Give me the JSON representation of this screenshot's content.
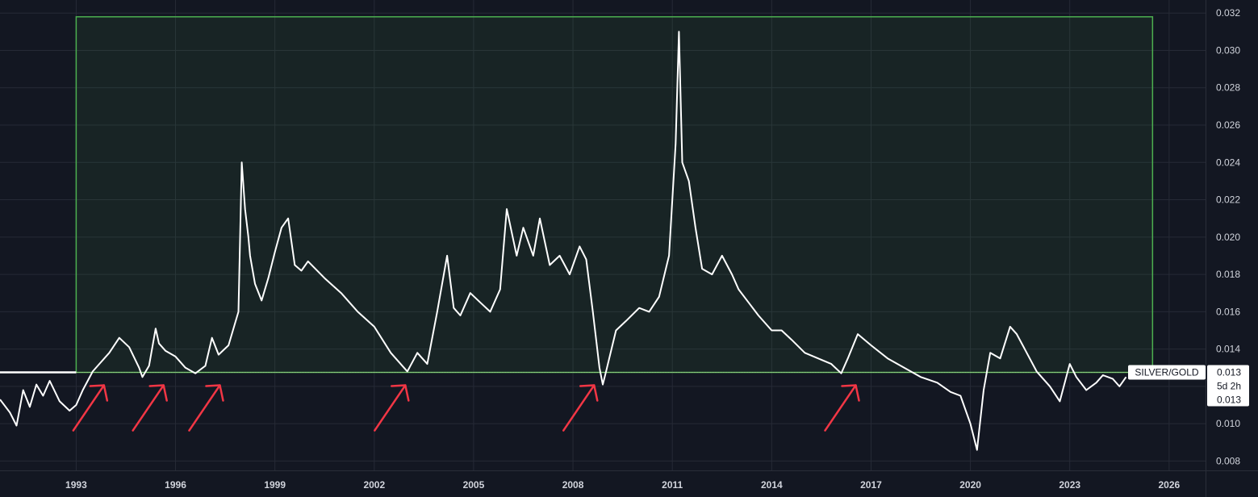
{
  "chart_data": {
    "type": "line",
    "symbol": "SILVER/GOLD",
    "last_price": "0.013",
    "countdown": "5d 2h",
    "price_line_label": "0.013",
    "support_level": 0.01275,
    "zone": {
      "x_start": 1993.0,
      "x_end": 2025.5,
      "y_low": 0.01275,
      "y_high": 0.0318
    },
    "zone_color": "#4caf50",
    "line_color": "#ffffff",
    "arrow_color": "#f23645",
    "background_color": "#131722",
    "x_ticks": [
      "1993",
      "1996",
      "1999",
      "2002",
      "2005",
      "2008",
      "2011",
      "2014",
      "2017",
      "2020",
      "2023",
      "2026"
    ],
    "x_tick_values": [
      1993,
      1996,
      1999,
      2002,
      2005,
      2008,
      2011,
      2014,
      2017,
      2020,
      2023,
      2026
    ],
    "y_ticks": [
      "0.008",
      "0.010",
      "0.012",
      "0.014",
      "0.016",
      "0.018",
      "0.020",
      "0.022",
      "0.024",
      "0.026",
      "0.028",
      "0.030",
      "0.032"
    ],
    "y_tick_values": [
      0.008,
      0.01,
      0.012,
      0.014,
      0.016,
      0.018,
      0.02,
      0.022,
      0.024,
      0.026,
      0.028,
      0.03,
      0.032
    ],
    "xlim": [
      1990.7,
      2027.1
    ],
    "ylim": [
      0.0075,
      0.0327
    ],
    "grid": true,
    "arrows": [
      1993.4,
      1995.2,
      1996.9,
      2002.5,
      2008.2,
      2016.1
    ],
    "series": [
      {
        "x": [
          1990.7,
          1991.0,
          1991.2,
          1991.4,
          1991.6,
          1991.8,
          1992.0,
          1992.2,
          1992.5,
          1992.8,
          1993.0,
          1993.2,
          1993.5,
          1993.7,
          1994.0,
          1994.3,
          1994.6,
          1994.9,
          1995.0,
          1995.2,
          1995.4,
          1995.5,
          1995.7,
          1996.0,
          1996.3,
          1996.6,
          1996.9,
          1997.1,
          1997.3,
          1997.6,
          1997.9,
          1998.0,
          1998.1,
          1998.2,
          1998.25,
          1998.4,
          1998.6,
          1998.8,
          1999.0,
          1999.2,
          1999.4,
          1999.6,
          1999.8,
          2000.0,
          2000.5,
          2001.0,
          2001.5,
          2002.0,
          2002.5,
          2002.9,
          2003.0,
          2003.3,
          2003.6,
          2003.9,
          2004.2,
          2004.4,
          2004.6,
          2004.9,
          2005.2,
          2005.5,
          2005.8,
          2006.0,
          2006.3,
          2006.5,
          2006.8,
          2007.0,
          2007.3,
          2007.6,
          2007.9,
          2008.2,
          2008.4,
          2008.6,
          2008.8,
          2008.9,
          2009.0,
          2009.3,
          2009.6,
          2010.0,
          2010.3,
          2010.6,
          2010.9,
          2011.1,
          2011.2,
          2011.3,
          2011.5,
          2011.7,
          2011.9,
          2012.2,
          2012.5,
          2012.8,
          2013.0,
          2013.3,
          2013.6,
          2014.0,
          2014.3,
          2014.6,
          2015.0,
          2015.4,
          2015.8,
          2016.1,
          2016.3,
          2016.6,
          2017.0,
          2017.5,
          2018.0,
          2018.5,
          2019.0,
          2019.4,
          2019.7,
          2020.0,
          2020.2,
          2020.4,
          2020.6,
          2020.9,
          2021.2,
          2021.4,
          2021.7,
          2022.0,
          2022.4,
          2022.7,
          2023.0,
          2023.2,
          2023.5,
          2023.8,
          2024.0,
          2024.3,
          2024.5,
          2024.7
        ],
        "y": [
          0.0113,
          0.0106,
          0.0099,
          0.0118,
          0.0109,
          0.0121,
          0.0115,
          0.0123,
          0.0112,
          0.0107,
          0.011,
          0.0118,
          0.0128,
          0.0132,
          0.0138,
          0.0146,
          0.0141,
          0.013,
          0.0125,
          0.0131,
          0.0151,
          0.0143,
          0.0139,
          0.0136,
          0.013,
          0.0127,
          0.0131,
          0.0146,
          0.0137,
          0.0142,
          0.016,
          0.024,
          0.0215,
          0.02,
          0.019,
          0.0175,
          0.0166,
          0.0178,
          0.0192,
          0.0205,
          0.021,
          0.0185,
          0.0182,
          0.0187,
          0.0178,
          0.017,
          0.016,
          0.0152,
          0.0138,
          0.013,
          0.0128,
          0.0138,
          0.0132,
          0.016,
          0.019,
          0.0162,
          0.0158,
          0.017,
          0.0165,
          0.016,
          0.0172,
          0.0215,
          0.019,
          0.0205,
          0.019,
          0.021,
          0.0185,
          0.019,
          0.018,
          0.0195,
          0.0188,
          0.016,
          0.013,
          0.0121,
          0.0128,
          0.015,
          0.0155,
          0.0162,
          0.016,
          0.0168,
          0.019,
          0.025,
          0.031,
          0.024,
          0.023,
          0.0205,
          0.0183,
          0.018,
          0.019,
          0.018,
          0.0172,
          0.0165,
          0.0158,
          0.015,
          0.015,
          0.0145,
          0.0138,
          0.0135,
          0.0132,
          0.0127,
          0.0135,
          0.0148,
          0.0142,
          0.0135,
          0.013,
          0.0125,
          0.0122,
          0.0117,
          0.0115,
          0.01,
          0.0086,
          0.0118,
          0.0138,
          0.0135,
          0.0152,
          0.0148,
          0.0138,
          0.0128,
          0.012,
          0.0112,
          0.0132,
          0.0125,
          0.0118,
          0.0122,
          0.0126,
          0.0124,
          0.012,
          0.0125
        ]
      }
    ]
  }
}
